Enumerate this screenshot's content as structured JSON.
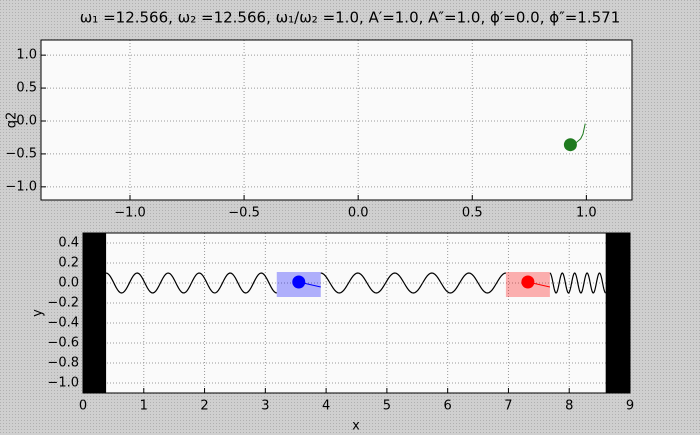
{
  "chart_data": [
    {
      "type": "trajectory",
      "title": "ω₁ =12.566, ω₂ =12.566, ω₁/ω₂ =1.0, A′=1.0, A″=1.0, ϕ′=0.0, ϕ″=1.571",
      "ylabel": "q2",
      "xlim": [
        -1.39,
        1.2
      ],
      "ylim": [
        -1.2,
        1.23
      ],
      "xticks": [
        {
          "value": -1,
          "label": "−1.0"
        },
        {
          "value": -0.5,
          "label": "−0.5"
        },
        {
          "value": 0,
          "label": "0.0"
        },
        0.5,
        {
          "value": 1,
          "label": "1.0"
        }
      ],
      "yticks": [
        {
          "value": 1,
          "label": "1.0"
        },
        0.5,
        {
          "value": 0,
          "label": "0.0"
        },
        {
          "value": -0.5,
          "label": "−0.5"
        },
        {
          "value": -1,
          "label": "−1.0"
        }
      ],
      "grid": true,
      "color": "#1f7a1f",
      "x": [
        0.93,
        0.955,
        0.975,
        0.985,
        0.99,
        0.995
      ],
      "values": [
        -0.36,
        -0.33,
        -0.27,
        -0.2,
        -0.12,
        -0.04
      ]
    },
    {
      "type": "masses",
      "xlabel": "x",
      "ylabel": "y",
      "xlim": [
        0,
        9
      ],
      "ylim": [
        -1.1,
        0.5
      ],
      "xticks": [
        0,
        1,
        2,
        3,
        4,
        5,
        6,
        7,
        8,
        9
      ],
      "yticks": [
        0.4,
        0.2,
        {
          "value": 0,
          "label": "0.0"
        },
        {
          "value": -0.2,
          "label": "−0.2"
        },
        {
          "value": -0.4,
          "label": "−0.4"
        },
        {
          "value": -0.6,
          "label": "−0.6"
        },
        {
          "value": -0.8,
          "label": "−0.8"
        },
        {
          "value": -1,
          "label": "−1.0"
        }
      ],
      "grid": true,
      "walls": [
        [
          0,
          0.38
        ],
        [
          8.6,
          9
        ]
      ],
      "masses": [
        {
          "x": 3.55,
          "y": 0.01,
          "color": "#0000ff"
        },
        {
          "x": 7.32,
          "y": 0.01,
          "color": "#ff0000"
        }
      ]
    }
  ]
}
